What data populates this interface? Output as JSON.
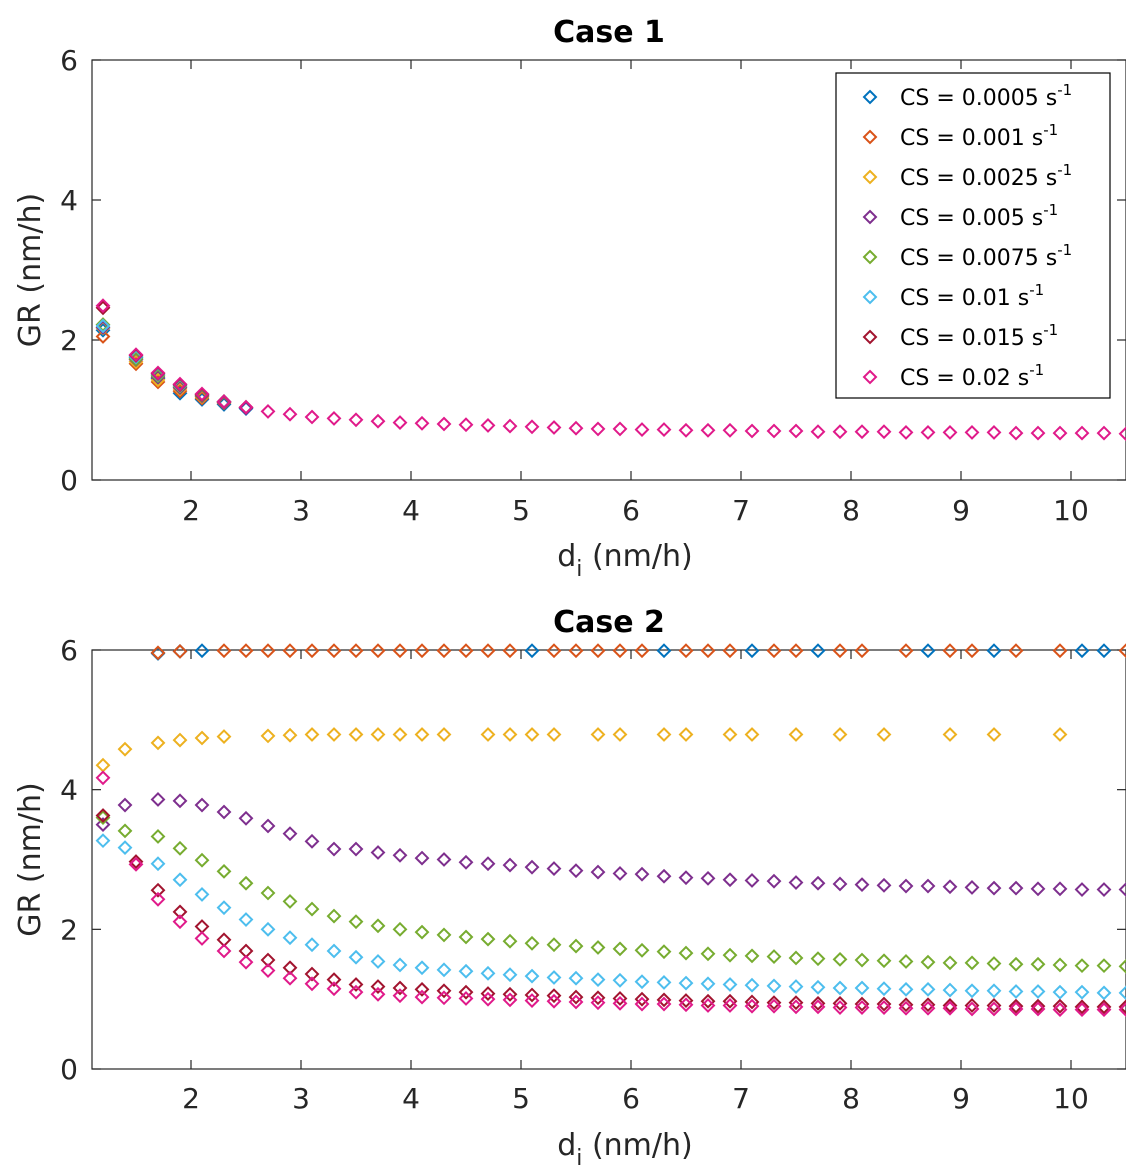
{
  "colors": [
    "#0072BD",
    "#D95319",
    "#EDB120",
    "#7E2F8E",
    "#77AC30",
    "#4DBEEE",
    "#A2142F",
    "#E01A8A"
  ],
  "legend": {
    "prefix": "CS = ",
    "unit": " s",
    "exponent": "-1",
    "placement": "top-right",
    "entries": [
      "0.0005",
      "0.001",
      "0.0025",
      "0.005",
      "0.0075",
      "0.01",
      "0.015",
      "0.02"
    ]
  },
  "chart_data": [
    {
      "type": "scatter",
      "title": "Case 1",
      "xlabel_main": "d",
      "xlabel_sub": "i",
      "xlabel_rest": " (nm/h)",
      "ylabel": "GR (nm/h)",
      "xlim": [
        1.1,
        10.5
      ],
      "ylim": [
        0,
        6
      ],
      "xticks": [
        2,
        3,
        4,
        5,
        6,
        7,
        8,
        9,
        10
      ],
      "yticks": [
        0,
        2,
        4,
        6
      ],
      "grid": false,
      "series": [
        {
          "x": [
            1.2,
            1.5,
            1.7,
            1.9,
            2.1,
            2.3,
            2.5
          ],
          "y": [
            2.14,
            1.75,
            1.45,
            1.24,
            1.15,
            1.08,
            1.02
          ]
        },
        {
          "x": [
            1.2,
            1.5,
            1.7,
            1.9,
            2.1,
            2.3
          ],
          "y": [
            2.05,
            1.66,
            1.4,
            1.27,
            1.17,
            1.1
          ]
        },
        {
          "x": [
            1.2,
            1.5,
            1.7,
            1.9,
            2.1,
            2.3
          ],
          "y": [
            2.17,
            1.69,
            1.43,
            1.3,
            1.19,
            1.11
          ]
        },
        {
          "x": [
            1.2,
            1.5,
            1.7,
            1.9,
            2.1,
            2.3,
            2.5
          ],
          "y": [
            2.18,
            1.72,
            1.47,
            1.32,
            1.2,
            1.11,
            1.03
          ]
        },
        {
          "x": [
            1.2,
            1.5,
            1.7,
            1.9,
            2.1,
            2.3
          ],
          "y": [
            2.22,
            1.73,
            1.49,
            1.34,
            1.21,
            1.12
          ]
        },
        {
          "x": [
            1.2,
            1.5,
            1.7,
            1.9,
            2.1,
            2.3
          ],
          "y": [
            2.2,
            1.76,
            1.51,
            1.35,
            1.22,
            1.12
          ]
        },
        {
          "x": [
            1.2,
            1.5,
            1.7,
            1.9,
            2.1,
            2.3,
            2.5
          ],
          "y": [
            2.46,
            1.78,
            1.52,
            1.36,
            1.22,
            1.12,
            1.04
          ]
        },
        {
          "x": [
            1.2,
            1.5,
            1.7,
            1.9,
            2.1,
            2.3,
            2.5,
            2.7,
            2.9,
            3.1,
            3.3,
            3.5,
            3.7,
            3.9,
            4.1,
            4.3,
            4.5,
            4.7,
            4.9,
            5.1,
            5.3,
            5.5,
            5.7,
            5.9,
            6.1,
            6.3,
            6.5,
            6.7,
            6.9,
            7.1,
            7.3,
            7.5,
            7.7,
            7.9,
            8.1,
            8.3,
            8.5,
            8.7,
            8.9,
            9.1,
            9.3,
            9.5,
            9.7,
            9.9,
            10.1,
            10.3,
            10.5
          ],
          "y": [
            2.49,
            1.79,
            1.53,
            1.37,
            1.23,
            1.12,
            1.04,
            0.98,
            0.94,
            0.9,
            0.88,
            0.86,
            0.84,
            0.82,
            0.81,
            0.8,
            0.79,
            0.78,
            0.77,
            0.76,
            0.75,
            0.74,
            0.73,
            0.73,
            0.72,
            0.72,
            0.71,
            0.71,
            0.71,
            0.7,
            0.7,
            0.7,
            0.69,
            0.69,
            0.69,
            0.69,
            0.68,
            0.68,
            0.68,
            0.68,
            0.68,
            0.67,
            0.67,
            0.67,
            0.67,
            0.67,
            0.66
          ]
        }
      ]
    },
    {
      "type": "scatter",
      "title": "Case 2",
      "xlabel_main": "d",
      "xlabel_sub": "i",
      "xlabel_rest": " (nm/h)",
      "ylabel": "GR (nm/h)",
      "xlim": [
        1.1,
        10.5
      ],
      "ylim": [
        0,
        6
      ],
      "xticks": [
        2,
        3,
        4,
        5,
        6,
        7,
        8,
        9,
        10
      ],
      "yticks": [
        0,
        2,
        4,
        6
      ],
      "grid": false,
      "series": [
        {
          "x": [
            1.7,
            1.9,
            2.1,
            5.1,
            6.3,
            7.1,
            7.7,
            8.7,
            9.3,
            10.1,
            10.3
          ],
          "y": [
            5.95,
            5.98,
            5.99,
            5.99,
            5.99,
            5.99,
            5.99,
            5.99,
            5.99,
            5.99,
            5.99
          ]
        },
        {
          "x": [
            1.7,
            1.9,
            2.3,
            2.5,
            2.7,
            2.9,
            3.1,
            3.3,
            3.5,
            3.7,
            3.9,
            4.1,
            4.3,
            4.5,
            4.7,
            4.9,
            5.3,
            5.5,
            5.7,
            5.9,
            6.1,
            6.5,
            6.7,
            6.9,
            7.3,
            7.5,
            7.9,
            8.1,
            8.5,
            8.9,
            9.1,
            9.5,
            9.9,
            10.5
          ],
          "y": [
            5.96,
            5.98,
            5.99,
            5.99,
            5.99,
            5.99,
            5.99,
            5.99,
            5.99,
            5.99,
            5.99,
            5.99,
            5.99,
            5.99,
            5.99,
            5.99,
            5.99,
            5.99,
            5.99,
            5.99,
            5.99,
            5.99,
            5.99,
            5.99,
            5.99,
            5.99,
            5.99,
            5.99,
            5.99,
            5.99,
            5.99,
            5.99,
            5.99,
            5.99
          ]
        },
        {
          "x": [
            1.2,
            1.4,
            1.7,
            1.9,
            2.1,
            2.3,
            2.7,
            2.9,
            3.1,
            3.3,
            3.5,
            3.7,
            3.9,
            4.1,
            4.3,
            4.7,
            4.9,
            5.1,
            5.3,
            5.7,
            5.9,
            6.3,
            6.5,
            6.9,
            7.1,
            7.5,
            7.9,
            8.3,
            8.9,
            9.3,
            9.9
          ],
          "y": [
            4.35,
            4.58,
            4.67,
            4.71,
            4.74,
            4.76,
            4.77,
            4.78,
            4.79,
            4.79,
            4.79,
            4.79,
            4.79,
            4.79,
            4.79,
            4.79,
            4.79,
            4.79,
            4.79,
            4.79,
            4.79,
            4.79,
            4.79,
            4.79,
            4.79,
            4.79,
            4.79,
            4.79,
            4.79,
            4.79,
            4.79
          ]
        },
        {
          "x": [
            1.2,
            1.4,
            1.7,
            1.9,
            2.1,
            2.3,
            2.5,
            2.7,
            2.9,
            3.1,
            3.3,
            3.5,
            3.7,
            3.9,
            4.1,
            4.3,
            4.5,
            4.7,
            4.9,
            5.1,
            5.3,
            5.5,
            5.7,
            5.9,
            6.1,
            6.3,
            6.5,
            6.7,
            6.9,
            7.1,
            7.3,
            7.5,
            7.7,
            7.9,
            8.1,
            8.3,
            8.5,
            8.7,
            8.9,
            9.1,
            9.3,
            9.5,
            9.7,
            9.9,
            10.1,
            10.3,
            10.5
          ],
          "y": [
            3.5,
            3.78,
            3.86,
            3.84,
            3.78,
            3.68,
            3.59,
            3.48,
            3.37,
            3.26,
            3.15,
            3.15,
            3.1,
            3.06,
            3.02,
            3.0,
            2.96,
            2.94,
            2.92,
            2.89,
            2.87,
            2.84,
            2.82,
            2.8,
            2.79,
            2.76,
            2.74,
            2.73,
            2.71,
            2.7,
            2.69,
            2.67,
            2.66,
            2.65,
            2.64,
            2.63,
            2.62,
            2.62,
            2.61,
            2.6,
            2.59,
            2.59,
            2.58,
            2.58,
            2.57,
            2.57,
            2.57
          ]
        },
        {
          "x": [
            1.2,
            1.4,
            1.7,
            1.9,
            2.1,
            2.3,
            2.5,
            2.7,
            2.9,
            3.1,
            3.3,
            3.5,
            3.7,
            3.9,
            4.1,
            4.3,
            4.5,
            4.7,
            4.9,
            5.1,
            5.3,
            5.5,
            5.7,
            5.9,
            6.1,
            6.3,
            6.5,
            6.7,
            6.9,
            7.1,
            7.3,
            7.5,
            7.7,
            7.9,
            8.1,
            8.3,
            8.5,
            8.7,
            8.9,
            9.1,
            9.3,
            9.5,
            9.7,
            9.9,
            10.1,
            10.3,
            10.5
          ],
          "y": [
            3.6,
            3.41,
            3.33,
            3.16,
            2.99,
            2.83,
            2.66,
            2.52,
            2.4,
            2.29,
            2.19,
            2.11,
            2.05,
            2.0,
            1.96,
            1.92,
            1.89,
            1.86,
            1.83,
            1.8,
            1.78,
            1.76,
            1.74,
            1.72,
            1.7,
            1.68,
            1.66,
            1.65,
            1.63,
            1.62,
            1.61,
            1.59,
            1.58,
            1.57,
            1.56,
            1.55,
            1.54,
            1.53,
            1.52,
            1.52,
            1.51,
            1.5,
            1.5,
            1.49,
            1.48,
            1.48,
            1.47
          ]
        },
        {
          "x": [
            1.2,
            1.4,
            1.7,
            1.9,
            2.1,
            2.3,
            2.5,
            2.7,
            2.9,
            3.1,
            3.3,
            3.5,
            3.7,
            3.9,
            4.1,
            4.3,
            4.5,
            4.7,
            4.9,
            5.1,
            5.3,
            5.5,
            5.7,
            5.9,
            6.1,
            6.3,
            6.5,
            6.7,
            6.9,
            7.1,
            7.3,
            7.5,
            7.7,
            7.9,
            8.1,
            8.3,
            8.5,
            8.7,
            8.9,
            9.1,
            9.3,
            9.5,
            9.7,
            9.9,
            10.1,
            10.3,
            10.5
          ],
          "y": [
            3.27,
            3.17,
            2.94,
            2.71,
            2.5,
            2.31,
            2.14,
            2.0,
            1.88,
            1.78,
            1.69,
            1.6,
            1.54,
            1.49,
            1.45,
            1.42,
            1.4,
            1.37,
            1.35,
            1.33,
            1.31,
            1.3,
            1.28,
            1.27,
            1.25,
            1.24,
            1.23,
            1.22,
            1.21,
            1.2,
            1.19,
            1.18,
            1.17,
            1.16,
            1.16,
            1.15,
            1.14,
            1.14,
            1.13,
            1.12,
            1.12,
            1.11,
            1.11,
            1.1,
            1.1,
            1.09,
            1.09
          ]
        },
        {
          "x": [
            1.2,
            1.5,
            1.7,
            1.9,
            2.1,
            2.3,
            2.5,
            2.7,
            2.9,
            3.1,
            3.3,
            3.5,
            3.7,
            3.9,
            4.1,
            4.3,
            4.5,
            4.7,
            4.9,
            5.1,
            5.3,
            5.5,
            5.7,
            5.9,
            6.1,
            6.3,
            6.5,
            6.7,
            6.9,
            7.1,
            7.3,
            7.5,
            7.7,
            7.9,
            8.1,
            8.3,
            8.5,
            8.7,
            8.9,
            9.1,
            9.3,
            9.5,
            9.7,
            9.9,
            10.1,
            10.3,
            10.5
          ],
          "y": [
            3.63,
            2.97,
            2.56,
            2.25,
            2.04,
            1.85,
            1.69,
            1.56,
            1.45,
            1.36,
            1.28,
            1.21,
            1.18,
            1.16,
            1.14,
            1.12,
            1.1,
            1.08,
            1.07,
            1.06,
            1.05,
            1.03,
            1.02,
            1.01,
            1.0,
            0.99,
            0.98,
            0.97,
            0.97,
            0.96,
            0.95,
            0.95,
            0.94,
            0.94,
            0.93,
            0.93,
            0.92,
            0.92,
            0.91,
            0.91,
            0.91,
            0.9,
            0.9,
            0.9,
            0.89,
            0.89,
            0.89
          ]
        },
        {
          "x": [
            1.2,
            1.5,
            1.7,
            1.9,
            2.1,
            2.3,
            2.5,
            2.7,
            2.9,
            3.1,
            3.3,
            3.5,
            3.7,
            3.9,
            4.1,
            4.3,
            4.5,
            4.7,
            4.9,
            5.1,
            5.3,
            5.5,
            5.7,
            5.9,
            6.1,
            6.3,
            6.5,
            6.7,
            6.9,
            7.1,
            7.3,
            7.5,
            7.7,
            7.9,
            8.1,
            8.3,
            8.5,
            8.7,
            8.9,
            9.1,
            9.3,
            9.5,
            9.7,
            9.9,
            10.1,
            10.3,
            10.5
          ],
          "y": [
            4.17,
            2.93,
            2.43,
            2.11,
            1.87,
            1.69,
            1.53,
            1.41,
            1.3,
            1.22,
            1.15,
            1.1,
            1.07,
            1.05,
            1.03,
            1.02,
            1.01,
            1.0,
            0.99,
            0.98,
            0.97,
            0.96,
            0.95,
            0.94,
            0.93,
            0.93,
            0.92,
            0.91,
            0.91,
            0.9,
            0.9,
            0.89,
            0.89,
            0.88,
            0.88,
            0.88,
            0.87,
            0.87,
            0.87,
            0.86,
            0.86,
            0.86,
            0.86,
            0.85,
            0.85,
            0.85,
            0.85
          ]
        }
      ]
    }
  ]
}
